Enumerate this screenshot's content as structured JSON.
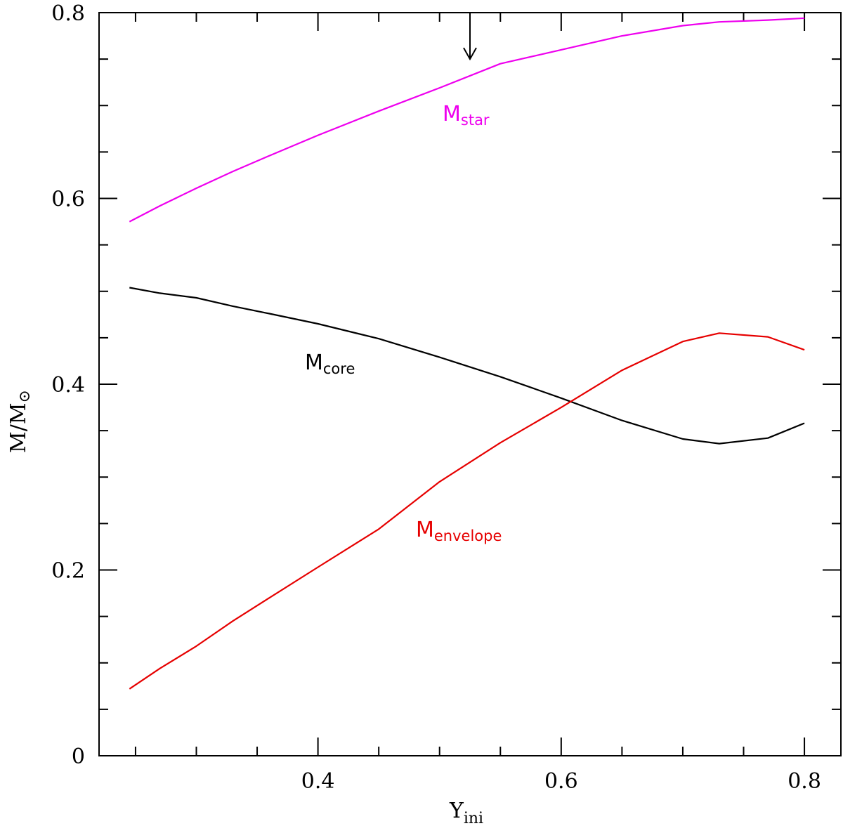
{
  "chart_data": {
    "type": "line",
    "title": "",
    "xlabel": "Y",
    "xlabel_sub": "ini",
    "ylabel": "M/M",
    "ylabel_sub": "⊙",
    "xlim": [
      0.22,
      0.83
    ],
    "ylim": [
      0,
      0.8
    ],
    "x_major_ticks": [
      0.4,
      0.6,
      0.8
    ],
    "x_tick_labels": [
      "0.4",
      "0.6",
      "0.8"
    ],
    "x_minor_step": 0.05,
    "y_major_ticks": [
      0,
      0.2,
      0.4,
      0.6,
      0.8
    ],
    "y_tick_labels": [
      "0",
      "0.2",
      "0.4",
      "0.6",
      "0.8"
    ],
    "y_minor_step": 0.05,
    "grid": false,
    "series": [
      {
        "name": "M",
        "sub": "star",
        "color": "#ee00ee",
        "x": [
          0.245,
          0.27,
          0.3,
          0.33,
          0.36,
          0.4,
          0.45,
          0.5,
          0.55,
          0.6,
          0.65,
          0.7,
          0.73,
          0.77,
          0.8
        ],
        "y": [
          0.575,
          0.592,
          0.611,
          0.629,
          0.646,
          0.668,
          0.694,
          0.719,
          0.745,
          0.76,
          0.775,
          0.786,
          0.79,
          0.792,
          0.794
        ],
        "label_at": [
          0.52,
          0.682
        ]
      },
      {
        "name": "M",
        "sub": "core",
        "color": "#000000",
        "x": [
          0.245,
          0.27,
          0.3,
          0.33,
          0.36,
          0.4,
          0.45,
          0.5,
          0.55,
          0.6,
          0.65,
          0.7,
          0.73,
          0.77,
          0.8
        ],
        "y": [
          0.504,
          0.498,
          0.493,
          0.484,
          0.476,
          0.465,
          0.449,
          0.429,
          0.408,
          0.385,
          0.361,
          0.341,
          0.336,
          0.342,
          0.358
        ],
        "label_at": [
          0.386,
          0.414
        ]
      },
      {
        "name": "M",
        "sub": "envelope",
        "color": "#e60000",
        "x": [
          0.245,
          0.27,
          0.3,
          0.33,
          0.36,
          0.4,
          0.45,
          0.5,
          0.55,
          0.6,
          0.65,
          0.7,
          0.73,
          0.77,
          0.8
        ],
        "y": [
          0.072,
          0.094,
          0.118,
          0.145,
          0.17,
          0.203,
          0.244,
          0.295,
          0.337,
          0.375,
          0.415,
          0.446,
          0.455,
          0.451,
          0.437
        ]
      }
    ],
    "annotations": [
      {
        "type": "arrow",
        "x": 0.525,
        "y_from": 0.8,
        "y_to": 0.75
      }
    ]
  }
}
